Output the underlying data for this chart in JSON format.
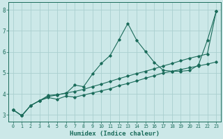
{
  "xlabel": "Humidex (Indice chaleur)",
  "bg_color": "#cce8e8",
  "grid_color": "#aacfcf",
  "line_color": "#1a6b5a",
  "xlim": [
    -0.5,
    23.5
  ],
  "ylim": [
    2.7,
    8.35
  ],
  "xticks": [
    0,
    1,
    2,
    3,
    4,
    5,
    6,
    7,
    8,
    9,
    10,
    11,
    12,
    13,
    14,
    15,
    16,
    17,
    18,
    19,
    20,
    21,
    22,
    23
  ],
  "yticks": [
    3,
    4,
    5,
    6,
    7,
    8
  ],
  "line1_x": [
    0,
    1,
    2,
    3,
    4,
    5,
    6,
    7,
    8,
    9,
    10,
    11,
    12,
    13,
    14,
    15,
    16,
    17,
    18,
    19,
    20,
    21,
    22,
    23
  ],
  "line1_y": [
    3.25,
    2.97,
    3.45,
    3.68,
    3.93,
    3.97,
    4.03,
    4.42,
    4.35,
    4.95,
    5.45,
    5.83,
    6.58,
    7.35,
    6.55,
    6.02,
    5.5,
    5.13,
    5.08,
    5.08,
    5.12,
    5.38,
    6.55,
    7.92
  ],
  "line2_x": [
    0,
    1,
    2,
    3,
    4,
    5,
    6,
    7,
    8,
    9,
    10,
    11,
    12,
    13,
    14,
    15,
    16,
    17,
    18,
    19,
    20,
    21,
    22,
    23
  ],
  "line2_y": [
    3.25,
    2.97,
    3.45,
    3.68,
    3.83,
    3.75,
    3.9,
    3.85,
    3.95,
    4.05,
    4.15,
    4.25,
    4.4,
    4.5,
    4.62,
    4.75,
    4.87,
    5.0,
    5.08,
    5.16,
    5.25,
    5.33,
    5.42,
    5.52
  ],
  "line3_x": [
    0,
    1,
    2,
    3,
    4,
    5,
    6,
    7,
    8,
    9,
    10,
    11,
    12,
    13,
    14,
    15,
    16,
    17,
    18,
    19,
    20,
    21,
    22,
    23
  ],
  "line3_y": [
    3.25,
    2.97,
    3.45,
    3.68,
    3.88,
    3.95,
    4.05,
    4.12,
    4.22,
    4.35,
    4.47,
    4.6,
    4.73,
    4.85,
    4.97,
    5.08,
    5.2,
    5.33,
    5.45,
    5.58,
    5.7,
    5.8,
    5.9,
    7.92
  ],
  "xlabel_fontsize": 6.5,
  "tick_fontsize": 5.5
}
